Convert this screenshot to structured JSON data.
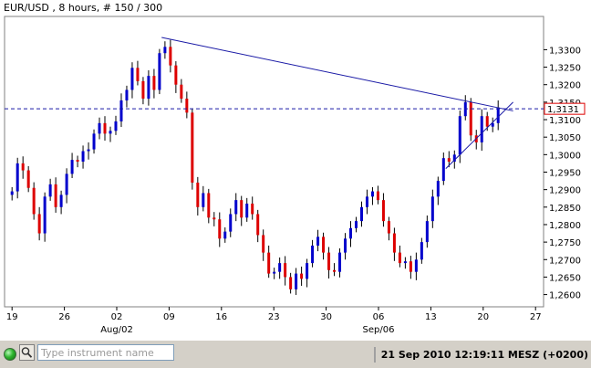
{
  "chart_data": {
    "type": "candlestick",
    "title": "EUR/USD , 8 hours, # 150 / 300",
    "ylim": [
      1.2565,
      1.3395
    ],
    "y_ticks": [
      "1,3300",
      "1,3250",
      "1,3200",
      "1,3150",
      "1,3100",
      "1,3050",
      "1,3000",
      "1,2950",
      "1,2900",
      "1,2850",
      "1,2800",
      "1,2750",
      "1,2700",
      "1,2650",
      "1,2600"
    ],
    "x_ticks": [
      {
        "day": "19",
        "month": ""
      },
      {
        "day": "26",
        "month": ""
      },
      {
        "day": "02",
        "month": "Aug/02"
      },
      {
        "day": "09",
        "month": ""
      },
      {
        "day": "16",
        "month": ""
      },
      {
        "day": "23",
        "month": ""
      },
      {
        "day": "30",
        "month": ""
      },
      {
        "day": "06",
        "month": "Sep/06"
      },
      {
        "day": "13",
        "month": ""
      },
      {
        "day": "20",
        "month": ""
      },
      {
        "day": "27",
        "month": ""
      }
    ],
    "current_price": "1,3131",
    "current_price_value": 1.3131,
    "bull_color": "#0000cc",
    "bear_color": "#dd0000",
    "line_color": "#1a1aa6",
    "trendlines": [
      {
        "from": [
          "2010-08-08",
          1.3335
        ],
        "to": [
          "2010-09-24",
          1.3125
        ]
      },
      {
        "from": [
          "2010-09-15",
          1.296
        ],
        "to": [
          "2010-09-24",
          1.315
        ]
      }
    ],
    "closes": [
      1.2895,
      1.2975,
      1.2955,
      1.2905,
      1.283,
      1.2775,
      1.288,
      1.2915,
      1.285,
      1.2885,
      1.2945,
      1.2985,
      1.298,
      1.301,
      1.3015,
      1.306,
      1.309,
      1.306,
      1.3068,
      1.3095,
      1.3155,
      1.3185,
      1.3248,
      1.321,
      1.316,
      1.3225,
      1.3185,
      1.329,
      1.3308,
      1.3255,
      1.32,
      1.316,
      1.312,
      1.292,
      1.285,
      1.289,
      1.282,
      1.2815,
      1.276,
      1.278,
      1.283,
      1.287,
      1.282,
      1.286,
      1.283,
      1.277,
      1.272,
      1.266,
      1.2665,
      1.269,
      1.265,
      1.2615,
      1.266,
      1.2645,
      1.269,
      1.274,
      1.2765,
      1.272,
      1.267,
      1.2665,
      1.272,
      1.276,
      1.279,
      1.281,
      1.285,
      1.288,
      1.2895,
      1.287,
      1.281,
      1.2775,
      1.272,
      1.269,
      1.2695,
      1.2665,
      1.27,
      1.275,
      1.281,
      1.288,
      1.2925,
      1.299,
      1.298,
      1.3,
      1.311,
      1.315,
      1.3055,
      1.3035,
      1.311,
      1.308,
      1.309,
      1.3135
    ],
    "x_axis_dates": [
      "2010-07-19",
      "2010-07-26",
      "2010-08-02",
      "2010-08-09",
      "2010-08-16",
      "2010-08-23",
      "2010-08-30",
      "2010-09-06",
      "2010-09-13",
      "2010-09-20",
      "2010-09-27"
    ]
  },
  "status_bar": {
    "search_placeholder": "Type instrument name",
    "datetime": "21 Sep 2010 12:19:11  MESZ (+0200)"
  }
}
